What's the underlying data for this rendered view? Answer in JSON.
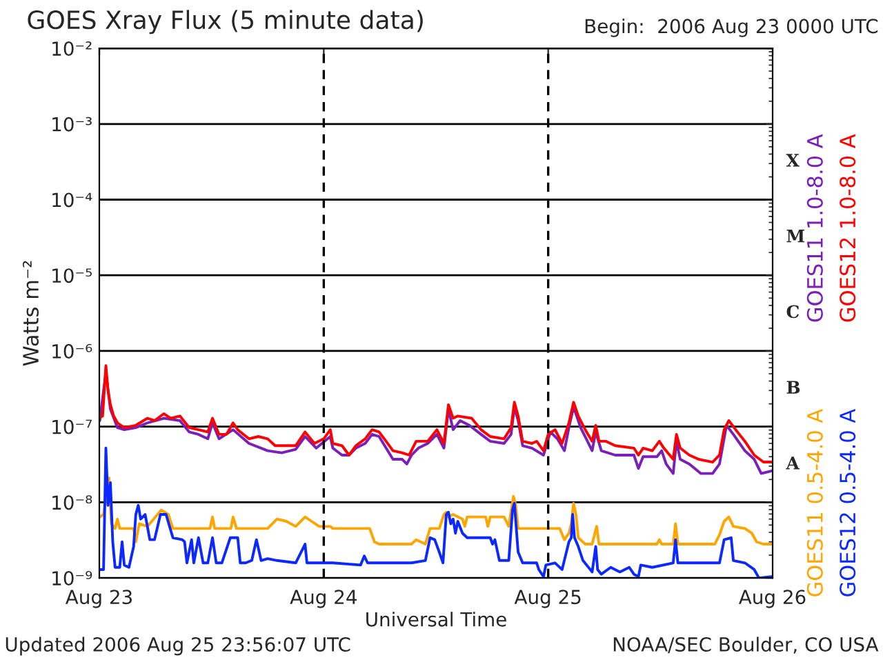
{
  "chart_data": {
    "type": "line",
    "title": "GOES Xray Flux (5 minute data)",
    "subtitle": "Begin:  2006 Aug 23 0000 UTC",
    "xlabel": "Universal Time",
    "ylabel": "Watts m⁻²",
    "log": "y",
    "grid": "y",
    "legend": "right",
    "line_style": "solid",
    "marker": "none",
    "xlim": [
      "2006-08-23T00:00",
      "2006-08-26T00:00"
    ],
    "xticks": [
      {
        "value": "2006-08-23",
        "label": "Aug 23"
      },
      {
        "value": "2006-08-24",
        "label": "Aug 24"
      },
      {
        "value": "2006-08-25",
        "label": "Aug 25"
      },
      {
        "value": "2006-08-26",
        "label": "Aug 26"
      }
    ],
    "ylim": [
      1e-09,
      0.01
    ],
    "yticks": [
      {
        "value": 1e-09,
        "label": "10⁻⁹"
      },
      {
        "value": 1e-08,
        "label": "10⁻⁸"
      },
      {
        "value": 1e-07,
        "label": "10⁻⁷"
      },
      {
        "value": 1e-06,
        "label": "10⁻⁶"
      },
      {
        "value": 1e-05,
        "label": "10⁻⁵"
      },
      {
        "value": 0.0001,
        "label": "10⁻⁴"
      },
      {
        "value": 0.001,
        "label": "10⁻³"
      },
      {
        "value": 0.01,
        "label": "10⁻²"
      }
    ],
    "ref_lines": [
      {
        "axis": "x",
        "value": "2006-08-24",
        "color": "#000000",
        "line_style": "dashed"
      },
      {
        "axis": "x",
        "value": "2006-08-25",
        "color": "#000000",
        "line_style": "dashed"
      }
    ],
    "annotations": [
      "X",
      "M",
      "C",
      "B",
      "A",
      "Updated 2006 Aug 25 23:56:07 UTC",
      "NOAA/SEC Boulder, CO USA"
    ],
    "series": [
      {
        "name": "GOES11 1.0-8.0 A",
        "color": "#7a1fb8",
        "x": [
          "2006-08-23T00:03",
          "2006-08-23T00:42",
          "2006-08-23T01:11",
          "2006-08-23T01:56",
          "2006-08-23T02:40",
          "2006-08-23T03:54",
          "2006-08-23T05:09",
          "2006-08-23T06:54",
          "2006-08-23T08:37",
          "2006-08-23T09:37",
          "2006-08-23T10:36",
          "2006-08-23T11:36",
          "2006-08-23T12:06",
          "2006-08-23T12:48",
          "2006-08-23T14:18",
          "2006-08-23T16:00",
          "2006-08-23T18:00",
          "2006-08-23T19:30",
          "2006-08-23T21:00",
          "2006-08-23T22:00",
          "2006-08-23T23:12",
          "2006-08-24T00:42",
          "2006-08-24T00:58",
          "2006-08-24T01:57",
          "2006-08-24T02:42",
          "2006-08-24T03:26",
          "2006-08-24T04:26",
          "2006-08-24T05:10",
          "2006-08-24T05:55",
          "2006-08-24T06:40",
          "2006-08-24T07:24",
          "2006-08-24T08:23",
          "2006-08-24T08:53",
          "2006-08-24T09:23",
          "2006-08-24T10:07",
          "2006-08-24T11:07",
          "2006-08-24T12:06",
          "2006-08-24T12:51",
          "2006-08-24T13:20",
          "2006-08-24T13:50",
          "2006-08-24T14:35",
          "2006-08-24T15:34",
          "2006-08-24T16:49",
          "2006-08-24T17:48",
          "2006-08-24T19:17",
          "2006-08-24T20:02",
          "2006-08-24T20:23",
          "2006-08-24T20:47",
          "2006-08-24T21:16",
          "2006-08-24T22:16",
          "2006-08-24T23:30",
          "2006-08-25T00:14",
          "2006-08-25T00:59",
          "2006-08-25T01:44",
          "2006-08-25T02:13",
          "2006-08-25T02:43",
          "2006-08-25T03:28",
          "2006-08-25T04:12",
          "2006-08-25T04:42",
          "2006-08-25T05:05",
          "2006-08-25T05:41",
          "2006-08-25T07:10",
          "2006-08-25T09:10",
          "2006-08-25T09:39",
          "2006-08-25T10:09",
          "2006-08-25T11:38",
          "2006-08-25T12:08",
          "2006-08-25T12:37",
          "2006-08-25T13:22",
          "2006-08-25T13:43",
          "2006-08-25T14:07",
          "2006-08-25T15:06",
          "2006-08-25T16:20",
          "2006-08-25T17:35",
          "2006-08-25T18:19",
          "2006-08-25T19:04",
          "2006-08-25T19:48",
          "2006-08-25T21:02",
          "2006-08-25T22:02",
          "2006-08-25T22:47",
          "2006-08-25T23:54"
        ],
        "values": [
          1.2e-07,
          5.2e-07,
          1.7e-07,
          9.7e-08,
          9.1e-08,
          9.7e-08,
          1.12e-07,
          1.29e-07,
          1.2e-07,
          8.5e-08,
          7.9e-08,
          6.9e-08,
          1.12e-07,
          6.9e-08,
          9.1e-08,
          6e-08,
          4.8e-08,
          4.5e-08,
          5e-08,
          7.4e-08,
          5.2e-08,
          7.4e-08,
          5.2e-08,
          4.2e-08,
          4.2e-08,
          5.2e-08,
          6e-08,
          7.9e-08,
          7.4e-08,
          5.2e-08,
          3.7e-08,
          3.7e-08,
          3.2e-08,
          4.2e-08,
          5.2e-08,
          6e-08,
          7.9e-08,
          5.2e-08,
          1.7e-07,
          9.1e-08,
          1.2e-07,
          1.04e-07,
          7.9e-08,
          6.4e-08,
          6e-08,
          7.9e-08,
          1.82e-07,
          1.2e-07,
          5.6e-08,
          5.2e-08,
          4.2e-08,
          8.5e-08,
          6.9e-08,
          4.8e-08,
          9.7e-08,
          1.82e-07,
          9.7e-08,
          6.4e-08,
          4.8e-08,
          8.5e-08,
          4.8e-08,
          4.2e-08,
          4.2e-08,
          2.8e-08,
          4e-08,
          4e-08,
          4.8e-08,
          3.2e-08,
          2.4e-08,
          6.4e-08,
          3.7e-08,
          3.2e-08,
          2.4e-08,
          2.4e-08,
          3.2e-08,
          1.04e-07,
          7.9e-08,
          4.8e-08,
          3.7e-08,
          2.4e-08,
          2.6e-08
        ]
      },
      {
        "name": "GOES12 1.0-8.0 A",
        "color": "#ff0000",
        "x": [
          "2006-08-23T00:03",
          "2006-08-23T00:21",
          "2006-08-23T00:42",
          "2006-08-23T00:56",
          "2006-08-23T01:11",
          "2006-08-23T01:32",
          "2006-08-23T01:56",
          "2006-08-23T02:40",
          "2006-08-23T03:54",
          "2006-08-23T05:09",
          "2006-08-23T05:54",
          "2006-08-23T06:54",
          "2006-08-23T07:38",
          "2006-08-23T08:37",
          "2006-08-23T09:37",
          "2006-08-23T10:36",
          "2006-08-23T11:36",
          "2006-08-23T12:06",
          "2006-08-23T12:48",
          "2006-08-23T13:36",
          "2006-08-23T14:18",
          "2006-08-23T14:48",
          "2006-08-23T16:00",
          "2006-08-23T17:00",
          "2006-08-23T18:00",
          "2006-08-23T18:48",
          "2006-08-23T20:00",
          "2006-08-23T21:00",
          "2006-08-23T22:00",
          "2006-08-23T23:00",
          "2006-08-24T00:00",
          "2006-08-24T00:42",
          "2006-08-24T00:58",
          "2006-08-24T01:57",
          "2006-08-24T02:42",
          "2006-08-24T03:26",
          "2006-08-24T04:26",
          "2006-08-24T05:10",
          "2006-08-24T05:55",
          "2006-08-24T06:40",
          "2006-08-24T07:24",
          "2006-08-24T08:23",
          "2006-08-24T09:08",
          "2006-08-24T09:53",
          "2006-08-24T11:07",
          "2006-08-24T12:06",
          "2006-08-24T12:51",
          "2006-08-24T13:20",
          "2006-08-24T13:50",
          "2006-08-24T14:20",
          "2006-08-24T15:49",
          "2006-08-24T16:49",
          "2006-08-24T17:48",
          "2006-08-24T19:17",
          "2006-08-24T20:02",
          "2006-08-24T20:23",
          "2006-08-24T20:47",
          "2006-08-24T21:16",
          "2006-08-24T22:16",
          "2006-08-24T22:46",
          "2006-08-24T23:30",
          "2006-08-25T00:00",
          "2006-08-25T00:44",
          "2006-08-25T01:29",
          "2006-08-25T02:13",
          "2006-08-25T02:43",
          "2006-08-25T03:13",
          "2006-08-25T03:58",
          "2006-08-25T04:42",
          "2006-08-25T05:05",
          "2006-08-25T05:26",
          "2006-08-25T06:11",
          "2006-08-25T07:10",
          "2006-08-25T09:10",
          "2006-08-25T09:39",
          "2006-08-25T10:09",
          "2006-08-25T11:08",
          "2006-08-25T11:53",
          "2006-08-25T12:22",
          "2006-08-25T13:22",
          "2006-08-25T13:43",
          "2006-08-25T14:07",
          "2006-08-25T15:06",
          "2006-08-25T16:05",
          "2006-08-25T17:35",
          "2006-08-25T18:19",
          "2006-08-25T18:49",
          "2006-08-25T19:19",
          "2006-08-25T20:03",
          "2006-08-25T21:02",
          "2006-08-25T22:02",
          "2006-08-25T23:01",
          "2006-08-25T23:54"
        ],
        "values": [
          1.32e-07,
          1.38e-07,
          6.4e-07,
          3e-07,
          1.95e-07,
          1.38e-07,
          1.12e-07,
          9.7e-08,
          1.04e-07,
          1.29e-07,
          1.2e-07,
          1.48e-07,
          1.29e-07,
          1.38e-07,
          9.7e-08,
          9.1e-08,
          8.5e-08,
          1.29e-07,
          7.9e-08,
          7.9e-08,
          1.12e-07,
          9.1e-08,
          6.9e-08,
          7.4e-08,
          6.9e-08,
          5.6e-08,
          5.6e-08,
          5.6e-08,
          8.5e-08,
          6e-08,
          6.9e-08,
          9.1e-08,
          6e-08,
          5.6e-08,
          4.2e-08,
          5.6e-08,
          6.9e-08,
          9.1e-08,
          8.5e-08,
          6.4e-08,
          4.8e-08,
          4.5e-08,
          4.2e-08,
          6.4e-08,
          6.4e-08,
          9.1e-08,
          6e-08,
          1.95e-07,
          1.29e-07,
          1.38e-07,
          1.29e-07,
          9.1e-08,
          7.4e-08,
          6.9e-08,
          9.7e-08,
          2.1e-07,
          1.38e-07,
          6.4e-08,
          6e-08,
          6.4e-08,
          4.8e-08,
          7.9e-08,
          9.1e-08,
          6e-08,
          1.12e-07,
          2.1e-07,
          1.38e-07,
          9.1e-08,
          6.4e-08,
          1.04e-07,
          6.4e-08,
          6.4e-08,
          5.6e-08,
          5.2e-08,
          4.2e-08,
          5.2e-08,
          4.8e-08,
          6.4e-08,
          5.2e-08,
          3.7e-08,
          7.9e-08,
          5.2e-08,
          4.2e-08,
          3.7e-08,
          3.4e-08,
          4.2e-08,
          9.1e-08,
          1.2e-07,
          9.1e-08,
          6.4e-08,
          4.2e-08,
          3.4e-08,
          3.4e-08
        ]
      },
      {
        "name": "GOES11 0.5-4.0 A",
        "color": "#ffa500",
        "x": [
          "2006-08-23T00:03",
          "2006-08-23T00:27",
          "2006-08-23T01:02",
          "2006-08-23T01:17",
          "2006-08-23T01:41",
          "2006-08-23T01:56",
          "2006-08-23T02:11",
          "2006-08-23T03:40",
          "2006-08-23T03:54",
          "2006-08-23T04:16",
          "2006-08-23T05:09",
          "2006-08-23T06:38",
          "2006-08-23T07:23",
          "2006-08-23T07:52",
          "2006-08-23T11:50",
          "2006-08-23T12:06",
          "2006-08-23T12:20",
          "2006-08-23T14:04",
          "2006-08-23T14:18",
          "2006-08-23T14:40",
          "2006-08-23T18:00",
          "2006-08-23T19:00",
          "2006-08-23T20:00",
          "2006-08-23T21:00",
          "2006-08-23T22:00",
          "2006-08-23T22:42",
          "2006-08-23T23:30",
          "2006-08-24T00:42",
          "2006-08-24T00:58",
          "2006-08-24T04:55",
          "2006-08-24T05:25",
          "2006-08-24T05:55",
          "2006-08-24T09:23",
          "2006-08-24T09:53",
          "2006-08-24T10:52",
          "2006-08-24T11:22",
          "2006-08-24T12:21",
          "2006-08-24T12:51",
          "2006-08-24T13:06",
          "2006-08-24T13:20",
          "2006-08-24T13:50",
          "2006-08-24T14:50",
          "2006-08-24T15:05",
          "2006-08-24T15:20",
          "2006-08-24T17:19",
          "2006-08-24T17:33",
          "2006-08-24T17:48",
          "2006-08-24T19:17",
          "2006-08-24T19:47",
          "2006-08-24T20:17",
          "2006-08-24T20:32",
          "2006-08-24T20:47",
          "2006-08-25T01:14",
          "2006-08-25T01:44",
          "2006-08-25T02:13",
          "2006-08-25T02:28",
          "2006-08-25T02:43",
          "2006-08-25T02:58",
          "2006-08-25T03:13",
          "2006-08-25T03:58",
          "2006-08-25T04:42",
          "2006-08-25T05:11",
          "2006-08-25T05:26",
          "2006-08-25T11:38",
          "2006-08-25T11:53",
          "2006-08-25T12:08",
          "2006-08-25T13:22",
          "2006-08-25T13:37",
          "2006-08-25T13:52",
          "2006-08-25T17:49",
          "2006-08-25T18:19",
          "2006-08-25T18:49",
          "2006-08-25T19:19",
          "2006-08-25T19:48",
          "2006-08-25T21:02",
          "2006-08-25T21:47",
          "2006-08-25T22:17",
          "2006-08-25T23:01",
          "2006-08-25T23:54"
        ],
        "values": [
          6.4e-09,
          6.9e-09,
          2.1e-08,
          5.2e-09,
          4.5e-09,
          6e-09,
          4.5e-09,
          4.5e-09,
          3e-09,
          5.2e-09,
          4.8e-09,
          7.9e-09,
          6.9e-09,
          4.5e-09,
          4.5e-09,
          6.4e-09,
          4.5e-09,
          4.5e-09,
          6.4e-09,
          4.5e-09,
          4.5e-09,
          6e-09,
          5.6e-09,
          4.8e-09,
          6.4e-09,
          5.6e-09,
          4.8e-09,
          4.8e-09,
          4.5e-09,
          4.5e-09,
          3e-09,
          2.8e-09,
          2.8e-09,
          3.2e-09,
          2.8e-09,
          4.5e-09,
          4.5e-09,
          6.9e-09,
          7.4e-09,
          6.4e-09,
          6.9e-09,
          6e-09,
          4.8e-09,
          6.4e-09,
          6.4e-09,
          4.8e-09,
          6.4e-09,
          6.4e-09,
          4.8e-09,
          1.2e-08,
          9.1e-09,
          4.5e-09,
          4.5e-09,
          3.2e-09,
          3.9e-09,
          5.2e-09,
          9.7e-09,
          6.9e-09,
          3.4e-09,
          2.8e-09,
          2.8e-09,
          4.8e-09,
          2.8e-09,
          2.8e-09,
          3.2e-09,
          2.8e-09,
          2.8e-09,
          5.2e-09,
          2.8e-09,
          2.8e-09,
          3.7e-09,
          5.6e-09,
          6.4e-09,
          4.8e-09,
          4.5e-09,
          3.9e-09,
          3e-09,
          2.8e-09,
          2.8e-09
        ]
      },
      {
        "name": "GOES12 0.5-4.0 A",
        "color": "#0a28ff",
        "x": [
          "2006-08-23T00:03",
          "2006-08-23T00:27",
          "2006-08-23T00:42",
          "2006-08-23T00:56",
          "2006-08-23T01:11",
          "2006-08-23T01:26",
          "2006-08-23T01:41",
          "2006-08-23T02:11",
          "2006-08-23T02:26",
          "2006-08-23T02:40",
          "2006-08-23T03:10",
          "2006-08-23T03:40",
          "2006-08-23T03:54",
          "2006-08-23T04:10",
          "2006-08-23T04:25",
          "2006-08-23T04:54",
          "2006-08-23T05:24",
          "2006-08-23T05:54",
          "2006-08-23T06:32",
          "2006-08-23T07:08",
          "2006-08-23T07:52",
          "2006-08-23T08:52",
          "2006-08-23T09:07",
          "2006-08-23T09:22",
          "2006-08-23T09:52",
          "2006-08-23T10:06",
          "2006-08-23T10:36",
          "2006-08-23T11:06",
          "2006-08-23T11:36",
          "2006-08-23T12:06",
          "2006-08-23T12:30",
          "2006-08-23T13:06",
          "2006-08-23T14:00",
          "2006-08-23T14:48",
          "2006-08-23T15:04",
          "2006-08-23T15:39",
          "2006-08-23T16:18",
          "2006-08-23T16:48",
          "2006-08-23T17:18",
          "2006-08-23T18:00",
          "2006-08-23T19:00",
          "2006-08-23T21:00",
          "2006-08-23T22:00",
          "2006-08-23T22:12",
          "2006-08-23T23:00",
          "2006-08-24T00:42",
          "2006-08-24T00:58",
          "2006-08-24T03:56",
          "2006-08-24T04:20",
          "2006-08-24T04:41",
          "2006-08-24T09:23",
          "2006-08-24T10:52",
          "2006-08-24T11:22",
          "2006-08-24T11:52",
          "2006-08-24T12:21",
          "2006-08-24T12:45",
          "2006-08-24T13:06",
          "2006-08-24T13:20",
          "2006-08-24T13:35",
          "2006-08-24T13:50",
          "2006-08-24T14:05",
          "2006-08-24T14:20",
          "2006-08-24T14:50",
          "2006-08-24T15:20",
          "2006-08-24T17:48",
          "2006-08-24T18:03",
          "2006-08-24T18:18",
          "2006-08-24T18:47",
          "2006-08-24T19:47",
          "2006-08-24T20:11",
          "2006-08-24T20:23",
          "2006-08-24T20:47",
          "2006-08-24T21:16",
          "2006-08-24T22:46",
          "2006-08-24T23:00",
          "2006-08-24T23:30",
          "2006-08-24T23:45",
          "2006-08-25T00:44",
          "2006-08-25T01:29",
          "2006-08-25T02:13",
          "2006-08-25T02:28",
          "2006-08-25T02:37",
          "2006-08-25T02:49",
          "2006-08-25T03:13",
          "2006-08-25T03:43",
          "2006-08-25T04:42",
          "2006-08-25T05:05",
          "2006-08-25T05:17",
          "2006-08-25T05:41",
          "2006-08-25T06:41",
          "2006-08-25T07:40",
          "2006-08-25T08:40",
          "2006-08-25T09:10",
          "2006-08-25T09:39",
          "2006-08-25T09:54",
          "2006-08-25T11:08",
          "2006-08-25T13:22",
          "2006-08-25T13:37",
          "2006-08-25T13:52",
          "2006-08-25T18:19",
          "2006-08-25T18:49",
          "2006-08-25T19:34",
          "2006-08-25T19:48",
          "2006-08-25T21:02",
          "2006-08-25T22:02",
          "2006-08-25T22:32",
          "2006-08-25T23:54"
        ],
        "values": [
          1.29e-09,
          1.29e-09,
          5.2e-08,
          9.1e-09,
          1.82e-08,
          3e-09,
          1.38e-09,
          1.38e-09,
          3e-09,
          1.48e-09,
          1.38e-09,
          2.6e-09,
          6.9e-09,
          9.1e-09,
          6e-09,
          6.9e-09,
          3.2e-09,
          3.2e-09,
          6.9e-09,
          6.9e-09,
          3.4e-09,
          3.2e-09,
          3e-09,
          1.58e-09,
          3.2e-09,
          1.58e-09,
          3.4e-09,
          1.58e-09,
          1.58e-09,
          3.4e-09,
          1.58e-09,
          1.58e-09,
          3.4e-09,
          3.4e-09,
          1.58e-09,
          1.58e-09,
          1.7e-09,
          3.2e-09,
          1.7e-09,
          1.8e-09,
          1.7e-09,
          1.58e-09,
          2.8e-09,
          1.58e-09,
          1.58e-09,
          1.58e-09,
          1.58e-09,
          1.48e-09,
          1.95e-09,
          1.58e-09,
          1.58e-09,
          1.7e-09,
          3.4e-09,
          3.2e-09,
          2.2e-09,
          1.58e-09,
          6.9e-09,
          7.4e-09,
          5.2e-09,
          6e-09,
          3.9e-09,
          5.6e-09,
          3.9e-09,
          3.4e-09,
          3.4e-09,
          2.8e-09,
          3.2e-09,
          1.7e-09,
          1.7e-09,
          7.9e-09,
          9.7e-09,
          2.2e-09,
          1.58e-09,
          1.58e-09,
          1.29e-09,
          1.04e-09,
          1.48e-09,
          1.58e-09,
          1.29e-09,
          3e-09,
          3.4e-09,
          6.9e-09,
          3.4e-09,
          2.6e-09,
          1.7e-09,
          1.2e-09,
          2.6e-09,
          1.29e-09,
          1.12e-09,
          1.38e-09,
          1.2e-09,
          1.38e-09,
          1.12e-09,
          1.04e-09,
          1.48e-09,
          1.38e-09,
          1.58e-09,
          3.2e-09,
          1.58e-09,
          1.58e-09,
          3.2e-09,
          3.4e-09,
          1.7e-09,
          1.58e-09,
          1.29e-09,
          1e-09,
          1.04e-09
        ]
      }
    ]
  }
}
